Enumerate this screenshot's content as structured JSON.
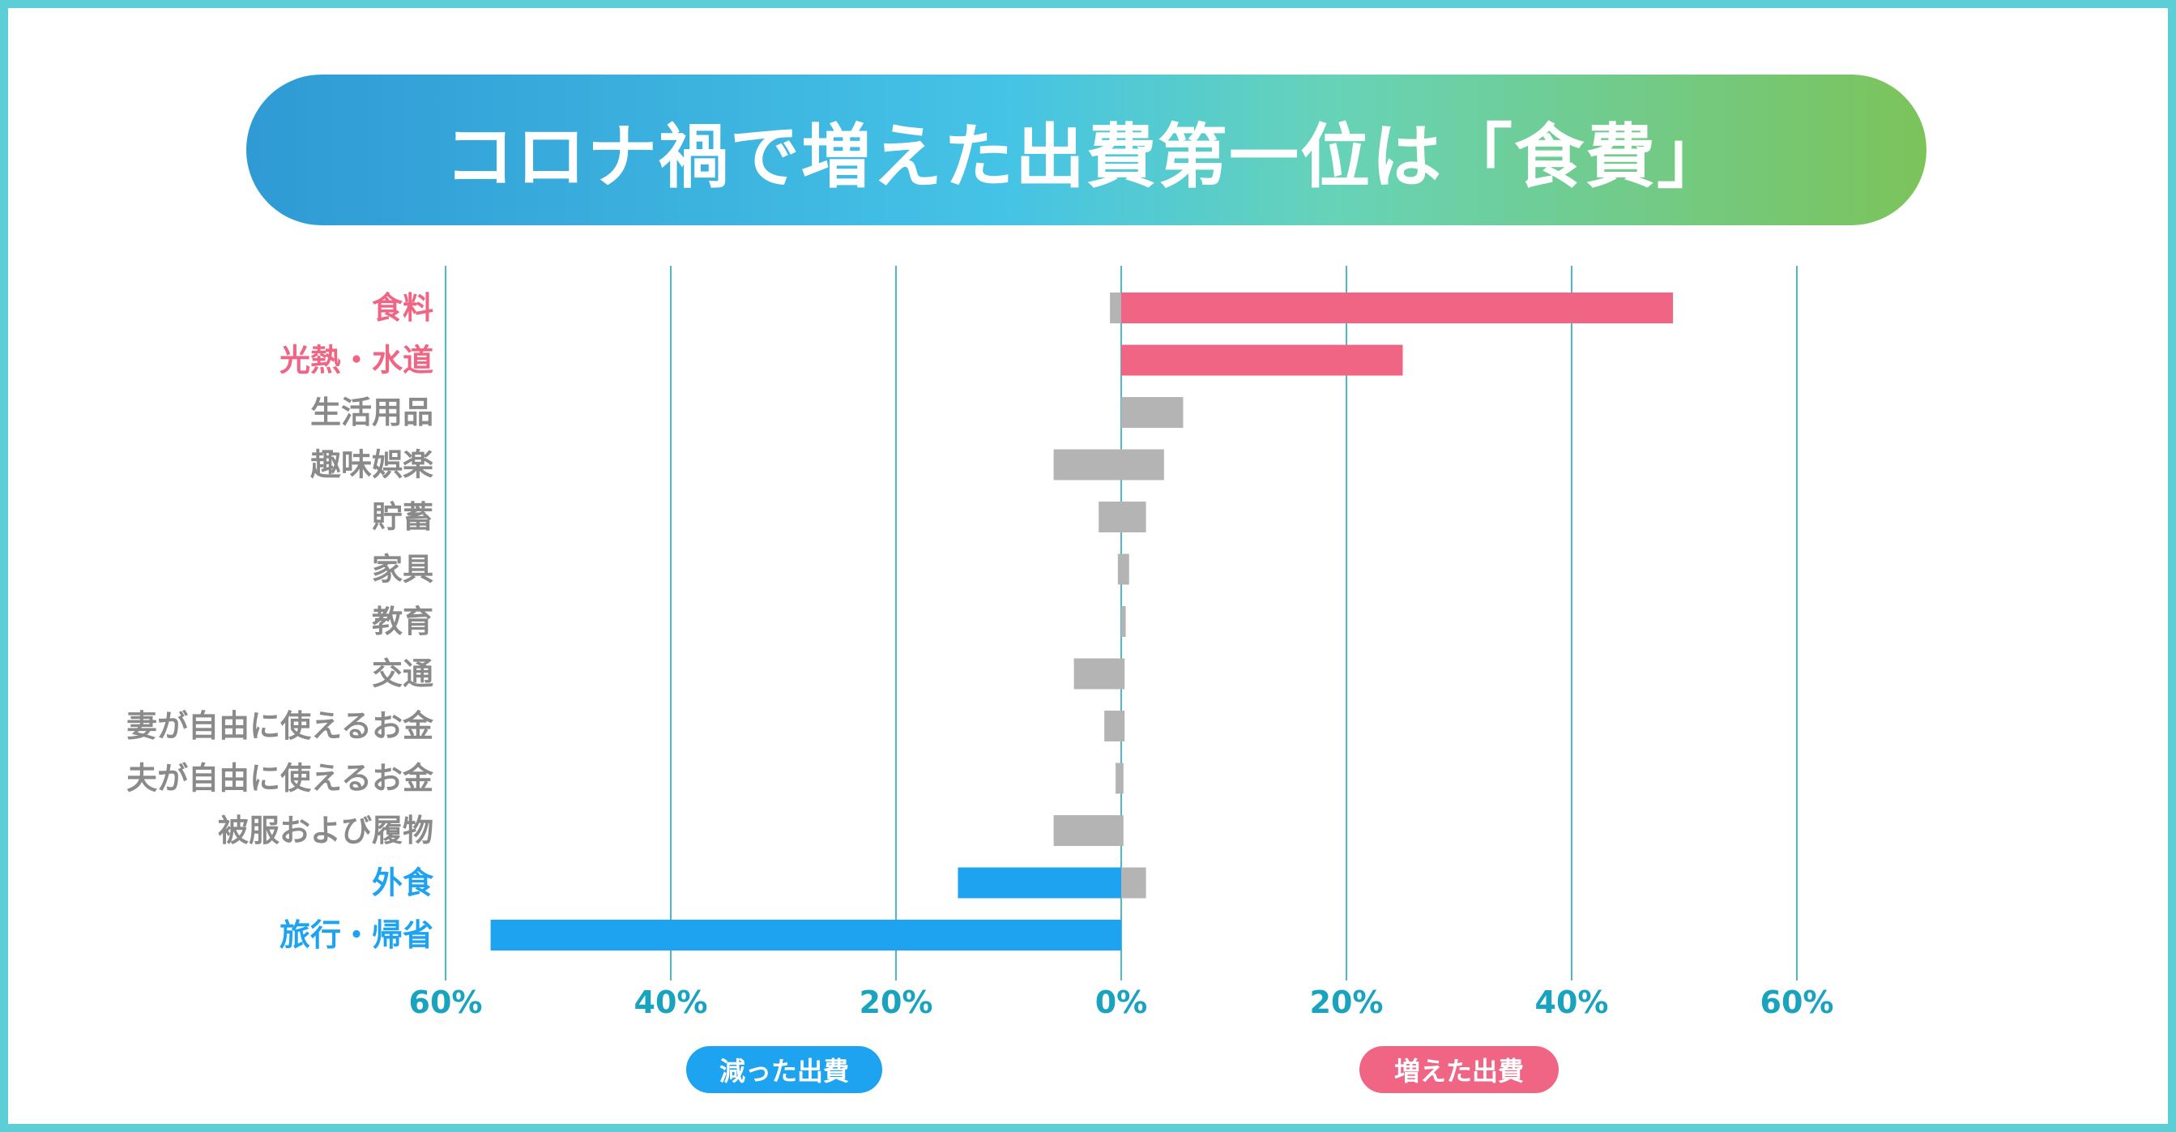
{
  "title": "コロナ禍で増えた出費第一位は「食費」",
  "legend": {
    "decrease": "減った出費",
    "increase": "増えた出費"
  },
  "colors": {
    "frame": "#5ccfd6",
    "increase": "#f06484",
    "decrease": "#1ea3f0",
    "neutral": "#b4b4b4",
    "grid": "#4fb8c8",
    "tick_text": "#1aa3be",
    "label_default": "#8a8a8a"
  },
  "chart_data": {
    "type": "bar",
    "orientation": "horizontal",
    "xlim": [
      -60,
      60
    ],
    "tick_labels": [
      "60%",
      "40%",
      "20%",
      "0%",
      "20%",
      "40%",
      "60%"
    ],
    "grid": true,
    "categories": [
      {
        "label": "食料",
        "highlight": "increase",
        "neg": -1,
        "pos": 49
      },
      {
        "label": "光熱・水道",
        "highlight": "increase",
        "neg": 0,
        "pos": 25
      },
      {
        "label": "生活用品",
        "highlight": "none",
        "neg": 0,
        "pos": 5.5
      },
      {
        "label": "趣味娯楽",
        "highlight": "none",
        "neg": -6,
        "pos": 3.8
      },
      {
        "label": "貯蓄",
        "highlight": "none",
        "neg": -2,
        "pos": 2.2
      },
      {
        "label": "家具",
        "highlight": "none",
        "neg": -0.3,
        "pos": 0.7
      },
      {
        "label": "教育",
        "highlight": "none",
        "neg": 0,
        "pos": 0.4
      },
      {
        "label": "交通",
        "highlight": "none",
        "neg": -4.2,
        "pos": 0.3
      },
      {
        "label": "妻が自由に使えるお金",
        "highlight": "none",
        "neg": -1.5,
        "pos": 0.3
      },
      {
        "label": "夫が自由に使えるお金",
        "highlight": "none",
        "neg": -0.5,
        "pos": 0.2
      },
      {
        "label": "被服および履物",
        "highlight": "none",
        "neg": -6,
        "pos": 0.2
      },
      {
        "label": "外食",
        "highlight": "decrease",
        "neg": -14.5,
        "pos": 2.2
      },
      {
        "label": "旅行・帰省",
        "highlight": "decrease",
        "neg": -56,
        "pos": 0
      }
    ]
  }
}
